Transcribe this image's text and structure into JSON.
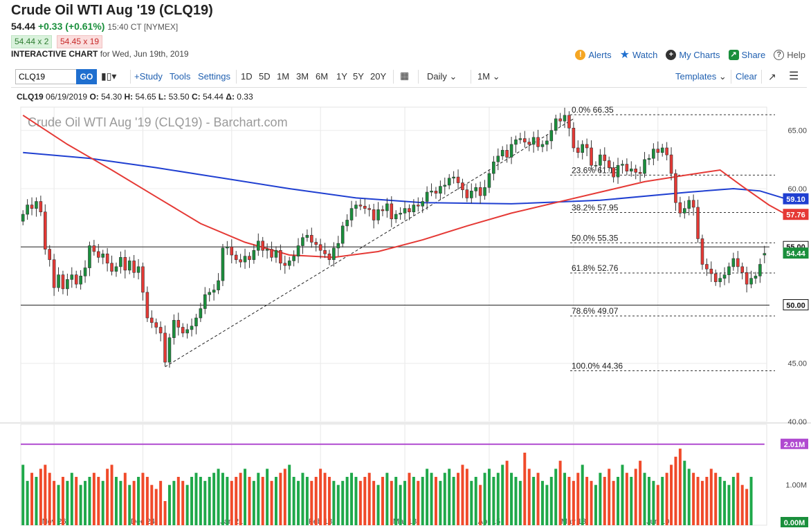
{
  "header": {
    "title": "Crude Oil WTI Aug '19 (CLQ19)",
    "last": "54.44",
    "change": "+0.33 (+0.61%)",
    "time": "15:40 CT [NYMEX]",
    "bid": "54.44 x 2",
    "ask": "54.45 x 19",
    "interactive_label": "INTERACTIVE CHART",
    "interactive_date": "for Wed, Jun 19th, 2019"
  },
  "actions": [
    {
      "label": "Alerts",
      "icon": "alert-icon",
      "color": "#f5a623"
    },
    {
      "label": "Watch",
      "icon": "star-icon",
      "color": "#1f6fcf"
    },
    {
      "label": "My Charts",
      "icon": "plus-circle-icon",
      "color": "#333333"
    },
    {
      "label": "Share",
      "icon": "share-icon",
      "color": "#1a8f3c"
    },
    {
      "label": "Help",
      "icon": "help-icon",
      "color": "#555555"
    }
  ],
  "toolbar": {
    "symbol": "CLQ19",
    "go": "GO",
    "study": "+Study",
    "tools": "Tools",
    "settings": "Settings",
    "ranges": [
      "1D",
      "5D",
      "1M",
      "3M",
      "6M",
      "1Y",
      "5Y",
      "20Y"
    ],
    "period": "Daily",
    "interval": "1M",
    "templates": "Templates",
    "clear": "Clear"
  },
  "ohlc_line": {
    "symbol": "CLQ19",
    "date": "06/19/2019",
    "open": "54.30",
    "high": "54.65",
    "low": "53.50",
    "close": "54.44",
    "delta": "0.33"
  },
  "chart_data": {
    "type": "candlestick",
    "watermark": "Crude Oil WTI Aug '19 (CLQ19) - Barchart.com",
    "x_tick_labels": [
      "Nov 26",
      "Dec 24",
      "Jan 21",
      "Feb 18",
      "Mar 18",
      "Apr 15",
      "May 13",
      "Jun 10"
    ],
    "ylim": [
      40,
      67
    ],
    "y_ticks": [
      "65.00",
      "60.00",
      "55.00",
      "50.00",
      "45.00",
      "40.00"
    ],
    "horizontal_lines": [
      55.0,
      50.0
    ],
    "price_tags": [
      {
        "label": "59.10",
        "value": 59.1,
        "color": "#1f3fd1"
      },
      {
        "label": "57.76",
        "value": 57.76,
        "color": "#e53935"
      },
      {
        "label": "55.00",
        "value": 55.0,
        "color": "#111111"
      },
      {
        "label": "54.44",
        "value": 54.44,
        "color": "#1a8f3c"
      },
      {
        "label": "50.00",
        "value": 50.0,
        "color": "#111111"
      }
    ],
    "fibonacci": [
      {
        "label": "0.0% 66.35",
        "value": 66.35
      },
      {
        "label": "23.6% 61.16",
        "value": 61.16
      },
      {
        "label": "38.2% 57.95",
        "value": 57.95
      },
      {
        "label": "50.0% 55.35",
        "value": 55.35
      },
      {
        "label": "61.8% 52.76",
        "value": 52.76
      },
      {
        "label": "78.6% 49.07",
        "value": 49.07
      },
      {
        "label": "100.0% 44.36",
        "value": 44.36
      }
    ],
    "closes": [
      57.8,
      58.6,
      58.3,
      58.9,
      58.0,
      54.8,
      53.9,
      51.5,
      52.6,
      51.4,
      52.2,
      52.6,
      51.8,
      52.5,
      53.2,
      55.1,
      54.6,
      54.1,
      54.4,
      53.6,
      52.9,
      53.3,
      54.1,
      53.0,
      53.8,
      52.8,
      53.3,
      51.1,
      48.9,
      48.5,
      48.1,
      47.6,
      45.1,
      47.2,
      48.7,
      48.1,
      47.6,
      47.9,
      48.2,
      48.9,
      49.7,
      50.9,
      51.1,
      51.3,
      52.1,
      54.9,
      55.0,
      54.3,
      53.9,
      53.7,
      54.2,
      53.9,
      54.7,
      55.5,
      54.7,
      54.8,
      54.1,
      54.7,
      53.6,
      53.4,
      53.8,
      54.2,
      55.1,
      55.8,
      56.0,
      55.4,
      55.2,
      54.7,
      54.4,
      53.9,
      54.9,
      55.3,
      56.8,
      57.3,
      58.3,
      58.6,
      58.5,
      58.3,
      58.2,
      57.3,
      58.2,
      58.1,
      58.7,
      57.4,
      57.8,
      57.9,
      58.3,
      58.0,
      58.6,
      58.5,
      58.9,
      59.7,
      59.8,
      59.6,
      60.2,
      60.3,
      60.9,
      61.0,
      60.5,
      59.9,
      59.2,
      59.8,
      60.1,
      59.4,
      60.1,
      61.3,
      62.3,
      62.8,
      63.3,
      62.7,
      63.8,
      64.2,
      64.3,
      64.0,
      63.8,
      64.4,
      63.6,
      63.8,
      64.1,
      65.0,
      66.0,
      65.8,
      66.3,
      65.2,
      63.5,
      63.1,
      63.8,
      63.5,
      62.0,
      62.0,
      62.9,
      62.4,
      61.8,
      61.0,
      62.0,
      62.1,
      61.5,
      61.7,
      61.4,
      61.3,
      62.5,
      62.6,
      63.4,
      63.1,
      63.5,
      62.9,
      61.3,
      58.8,
      57.9,
      58.3,
      59.0,
      58.4,
      55.7,
      53.5,
      53.1,
      52.7,
      52.0,
      52.3,
      52.6,
      53.3,
      54.0,
      53.3,
      52.8,
      51.8,
      52.3,
      52.5,
      53.5,
      54.44
    ],
    "opens": [
      57.2,
      57.8,
      58.6,
      58.3,
      58.9,
      58.0,
      54.8,
      53.9,
      51.5,
      52.6,
      51.4,
      52.2,
      52.6,
      51.8,
      52.5,
      53.2,
      55.1,
      54.6,
      54.1,
      54.4,
      53.6,
      52.9,
      53.3,
      54.1,
      53.0,
      53.8,
      52.8,
      53.3,
      51.1,
      48.9,
      48.5,
      48.1,
      47.6,
      45.1,
      47.2,
      48.7,
      48.1,
      47.6,
      47.9,
      48.2,
      48.9,
      49.7,
      50.9,
      51.1,
      51.3,
      52.1,
      54.9,
      55.0,
      54.3,
      53.9,
      53.7,
      54.2,
      53.9,
      54.7,
      55.5,
      54.7,
      54.8,
      54.1,
      54.7,
      53.6,
      53.4,
      53.8,
      54.2,
      55.1,
      55.8,
      56.0,
      55.4,
      55.2,
      54.7,
      54.4,
      53.9,
      54.9,
      55.3,
      56.8,
      57.3,
      58.3,
      58.6,
      58.5,
      58.3,
      58.2,
      57.3,
      58.2,
      58.1,
      58.7,
      57.4,
      57.8,
      57.9,
      58.3,
      58.0,
      58.6,
      58.5,
      58.9,
      59.7,
      59.8,
      59.6,
      60.2,
      60.3,
      60.9,
      61.0,
      60.5,
      59.9,
      59.2,
      59.8,
      60.1,
      59.4,
      60.1,
      61.3,
      62.3,
      62.8,
      63.3,
      62.7,
      63.8,
      64.2,
      64.3,
      64.0,
      63.8,
      64.4,
      63.6,
      63.8,
      64.1,
      65.0,
      66.0,
      65.8,
      66.3,
      65.2,
      63.5,
      63.1,
      63.8,
      63.5,
      62.0,
      62.0,
      62.9,
      62.4,
      61.8,
      61.0,
      62.0,
      62.1,
      61.5,
      61.7,
      61.4,
      61.3,
      62.5,
      62.6,
      63.4,
      63.1,
      63.5,
      62.9,
      61.3,
      58.8,
      57.9,
      58.3,
      59.0,
      58.4,
      55.7,
      53.5,
      53.1,
      52.7,
      52.0,
      52.3,
      52.6,
      53.3,
      54.0,
      53.3,
      52.8,
      51.8,
      52.3,
      52.5,
      54.3
    ],
    "ma_red_label": "57.76",
    "ma_blue_label": "59.10",
    "ma_red": [
      [
        0,
        66.3
      ],
      [
        10,
        63.8
      ],
      [
        20,
        61.6
      ],
      [
        30,
        59.3
      ],
      [
        40,
        57.0
      ],
      [
        50,
        55.4
      ],
      [
        60,
        54.3
      ],
      [
        70,
        54.1
      ],
      [
        80,
        54.6
      ],
      [
        90,
        55.6
      ],
      [
        100,
        56.8
      ],
      [
        110,
        57.9
      ],
      [
        120,
        58.8
      ],
      [
        130,
        59.7
      ],
      [
        140,
        60.6
      ],
      [
        150,
        61.2
      ],
      [
        157,
        61.6
      ],
      [
        162,
        60.2
      ],
      [
        168,
        58.6
      ],
      [
        172,
        57.76
      ]
    ],
    "ma_blue": [
      [
        0,
        63.1
      ],
      [
        15,
        62.6
      ],
      [
        30,
        61.8
      ],
      [
        45,
        60.9
      ],
      [
        60,
        60.0
      ],
      [
        75,
        59.2
      ],
      [
        90,
        58.8
      ],
      [
        110,
        58.7
      ],
      [
        130,
        59.0
      ],
      [
        150,
        59.7
      ],
      [
        160,
        60.0
      ],
      [
        166,
        59.8
      ],
      [
        172,
        59.1
      ]
    ],
    "trendline": {
      "from": [
        32,
        44.7
      ],
      "to": [
        124,
        66.0
      ]
    },
    "volume": {
      "tick_labels": [
        "2.01M",
        "1.00M",
        "0.00M"
      ],
      "ylim": [
        0,
        2.4
      ],
      "oi_level": 2.01,
      "values": [
        1.5,
        1.1,
        1.3,
        1.2,
        1.4,
        1.5,
        1.3,
        1.1,
        1.0,
        1.2,
        1.1,
        1.3,
        1.2,
        1.0,
        1.1,
        1.2,
        1.3,
        1.2,
        1.1,
        1.4,
        1.5,
        1.2,
        1.1,
        1.3,
        1.0,
        1.1,
        1.2,
        1.3,
        1.2,
        1.0,
        0.9,
        1.1,
        0.6,
        1.0,
        1.1,
        1.2,
        1.1,
        1.0,
        1.2,
        1.3,
        1.2,
        1.1,
        1.2,
        1.3,
        1.4,
        1.3,
        1.2,
        1.1,
        1.2,
        1.3,
        1.4,
        1.2,
        1.1,
        1.3,
        1.2,
        1.4,
        1.1,
        1.2,
        1.3,
        1.4,
        1.5,
        1.2,
        1.1,
        1.3,
        1.2,
        1.1,
        1.2,
        1.4,
        1.3,
        1.2,
        1.1,
        1.0,
        1.1,
        1.2,
        1.3,
        1.2,
        1.1,
        1.2,
        1.3,
        1.1,
        1.0,
        1.2,
        1.3,
        1.1,
        1.2,
        1.0,
        1.1,
        1.3,
        1.2,
        1.1,
        1.2,
        1.4,
        1.3,
        1.2,
        1.1,
        1.3,
        1.4,
        1.2,
        1.3,
        1.5,
        1.4,
        1.1,
        1.2,
        1.0,
        1.3,
        1.4,
        1.2,
        1.3,
        1.5,
        1.6,
        1.3,
        1.2,
        1.1,
        1.8,
        1.4,
        1.2,
        1.3,
        1.1,
        1.0,
        1.2,
        1.4,
        1.6,
        1.3,
        1.2,
        1.1,
        1.3,
        1.5,
        1.2,
        1.1,
        1.0,
        1.3,
        1.2,
        1.4,
        1.1,
        1.2,
        1.5,
        1.3,
        1.2,
        1.4,
        1.6,
        1.3,
        1.2,
        1.1,
        1.0,
        1.2,
        1.3,
        1.5,
        1.7,
        1.9,
        1.6,
        1.4,
        1.3,
        1.2,
        1.1,
        1.2,
        1.4,
        1.3,
        1.2,
        1.1,
        1.0,
        1.2,
        1.3,
        1.0,
        0.9,
        1.2
      ]
    }
  }
}
